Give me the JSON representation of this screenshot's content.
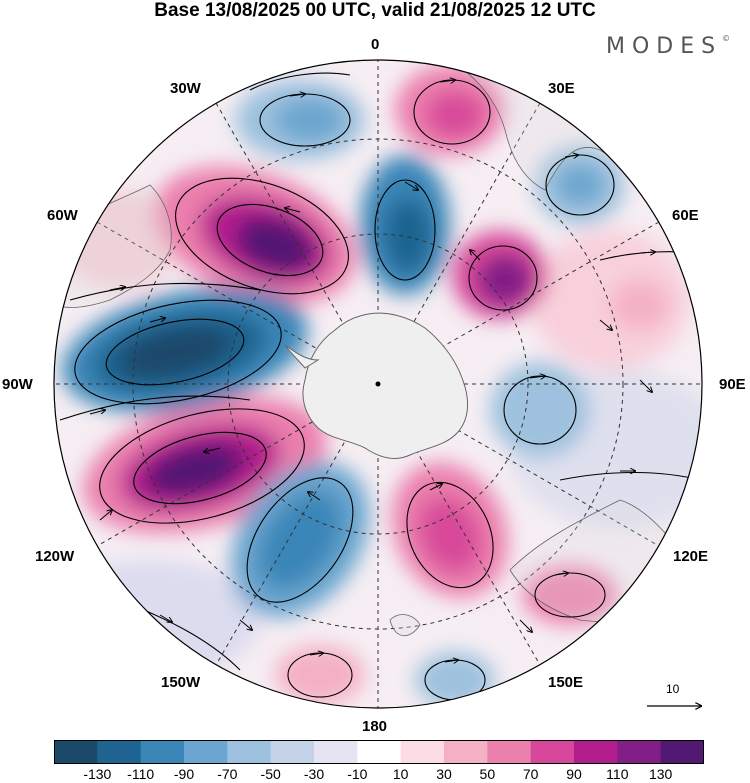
{
  "title": "Base 13/08/2025 00 UTC, valid 21/08/2025 12 UTC",
  "brand": "MODES",
  "brand_mark": "©",
  "longitude_labels": {
    "top": "0",
    "bottom": "180",
    "left": "90W",
    "right": "90E",
    "w30": "30W",
    "e30": "30E",
    "w60": "60W",
    "e60": "60E",
    "w120": "120W",
    "e120": "120E",
    "w150": "150W",
    "e150": "150E"
  },
  "vector_reference": {
    "label": "10",
    "magnitude": 10
  },
  "colorbar": {
    "tick_labels": [
      "-130",
      "-110",
      "-90",
      "-70",
      "-50",
      "-30",
      "-10",
      "10",
      "30",
      "50",
      "70",
      "90",
      "110",
      "130"
    ],
    "colors": [
      "#1b4a6b",
      "#1f6390",
      "#3a86b8",
      "#6aa6cf",
      "#9dc1de",
      "#c5d3e8",
      "#e4e4f2",
      "#ffffff",
      "#fbdde3",
      "#f4b1c4",
      "#eb7fad",
      "#d8489a",
      "#b21e8c",
      "#821f86",
      "#521973"
    ]
  },
  "palette": {
    "land": "#efefef",
    "coast": "#666666",
    "grid": "#333333",
    "neg_dark": "#1b4a6b",
    "neg_mid": "#3a86b8",
    "neg_light": "#c5d3e8",
    "pos_light": "#fbdde3",
    "pos_mid": "#eb7fad",
    "pos_dark": "#821f86"
  }
}
